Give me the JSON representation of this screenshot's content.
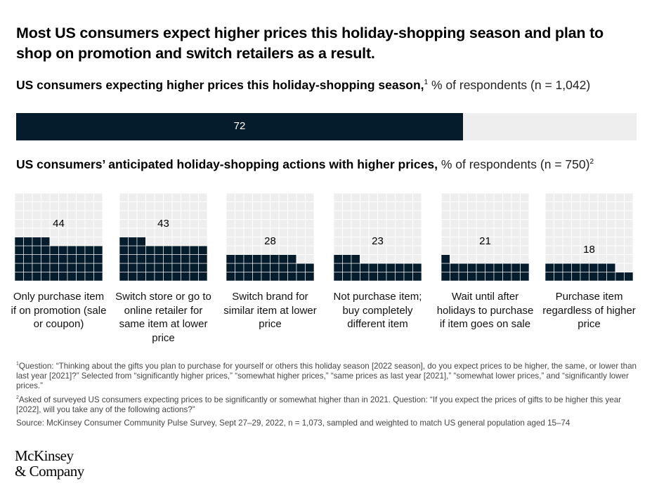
{
  "title": "Most US consumers expect higher prices this holiday-shopping season and plan to shop on promotion and switch retailers as a result.",
  "chart_data": [
    {
      "type": "bar",
      "title": "US consumers expecting higher prices this holiday-shopping season,",
      "title_footnote": "1",
      "unit": "% of respondents (n = 1,042)",
      "categories": [
        "US consumers expecting higher prices"
      ],
      "values": [
        72
      ],
      "ylim": [
        0,
        100
      ],
      "colors": {
        "fill": "#051c2c",
        "track": "#eeeeee",
        "label": "#ffffff"
      }
    },
    {
      "type": "bar",
      "title": "US consumers’ anticipated holiday-shopping actions with higher prices,",
      "unit": "% of respondents (n = 750)",
      "unit_footnote": "2",
      "categories": [
        "Only purchase item if on promotion (sale or coupon)",
        "Switch store or go to online retailer for same item at lower price",
        "Switch brand for similar item at lower price",
        "Not purchase item; buy completely different item",
        "Wait until after holidays to purchase if item goes on sale",
        "Purchase item regardless of higher price"
      ],
      "values": [
        44,
        43,
        28,
        23,
        21,
        18
      ],
      "ylim": [
        0,
        100
      ],
      "grid": true,
      "colors": {
        "filled": "#051c2c",
        "empty": "#eeeeee",
        "gridline": "#ffffff"
      }
    }
  ],
  "footnotes": {
    "fn1_marker": "1",
    "fn1": "Question: “Thinking about the gifts you plan to purchase for yourself or others this holiday season [2022 season], do you expect prices to be higher, the same, or lower than last year [2021]?” Selected from “significantly higher prices,” “somewhat higher prices,” “same prices as last year [2021],” “somewhat lower prices,” and “significantly lower prices.”",
    "fn2_marker": "2",
    "fn2": "Asked of surveyed US consumers expecting prices to be significantly or somewhat higher than in 2021. Question: “If you expect the prices of gifts to be higher this year [2022], will you take any of the following actions?”",
    "source": "Source: McKinsey Consumer Community Pulse Survey, Sept 27–29, 2022, n = 1,073, sampled and weighted to match US general population aged 15–74"
  },
  "logo": {
    "line1": "McKinsey",
    "line2": "& Company"
  }
}
